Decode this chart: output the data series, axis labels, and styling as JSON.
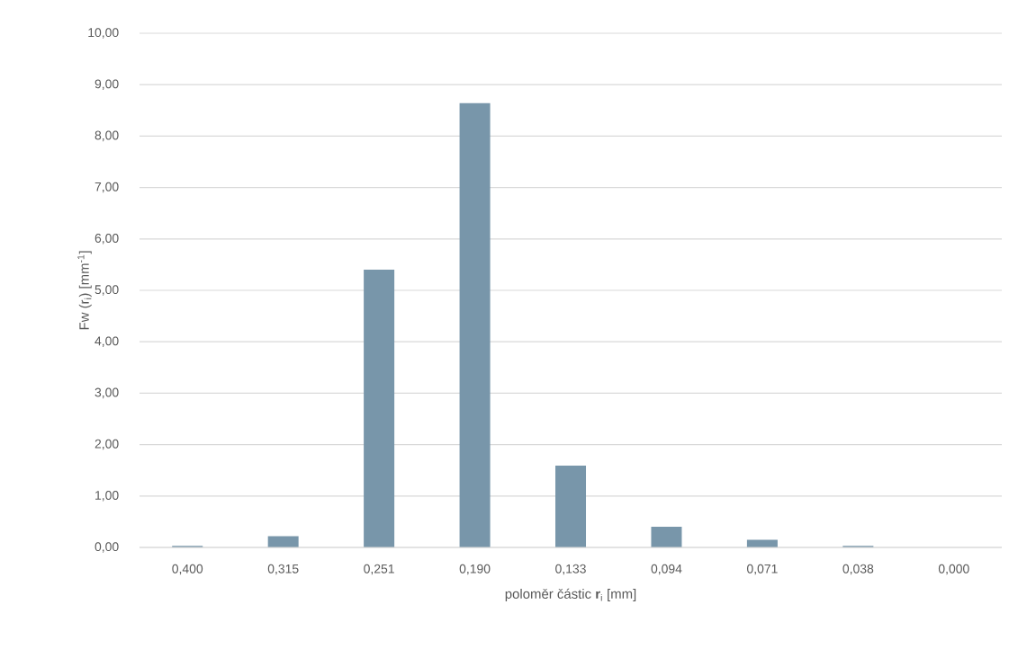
{
  "chart_data": {
    "type": "bar",
    "xlabel": "poloměr částic **r**$_{i}$ [mm]",
    "ylabel": "Fw (r$_{i}$) [mm$^{-1}$]",
    "categories": [
      "0,400",
      "0,315",
      "0,251",
      "0,190",
      "0,133",
      "0,094",
      "0,071",
      "0,038",
      "0,000"
    ],
    "values": [
      0.03,
      0.22,
      5.4,
      8.64,
      1.59,
      0.4,
      0.15,
      0.03,
      0
    ],
    "color": "#7896aa",
    "ylim": [
      0,
      10
    ],
    "yticks": [
      {
        "value": 0,
        "label": "0,00"
      },
      {
        "value": 1,
        "label": "1,00"
      },
      {
        "value": 2,
        "label": "2,00"
      },
      {
        "value": 3,
        "label": "3,00"
      },
      {
        "value": 4,
        "label": "4,00"
      },
      {
        "value": 5,
        "label": "5,00"
      },
      {
        "value": 6,
        "label": "6,00"
      },
      {
        "value": 7,
        "label": "7,00"
      },
      {
        "value": 8,
        "label": "8,00"
      },
      {
        "value": 9,
        "label": "9,00"
      },
      {
        "value": 10,
        "label": "10,00"
      }
    ],
    "grid": "y"
  }
}
